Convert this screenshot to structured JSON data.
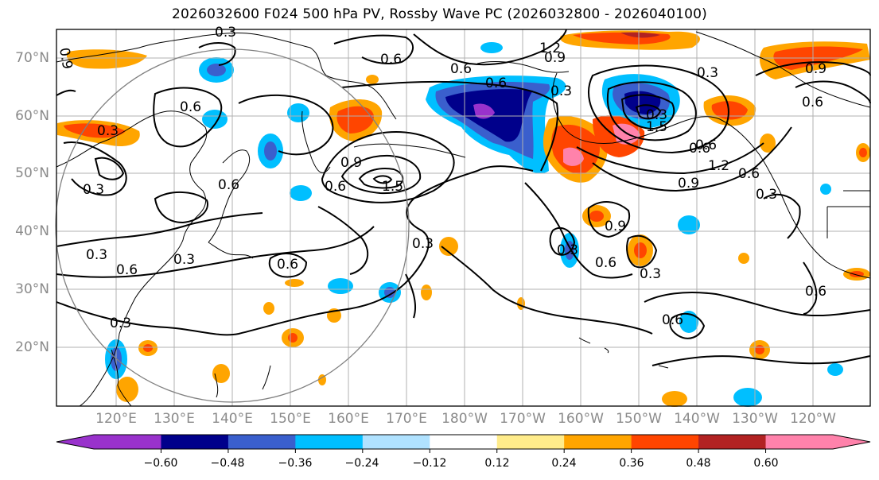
{
  "title": "2026032600 F024 500 hPa PV, Rossby Wave PC (2026032800 - 2026040100)",
  "lat_labels": [
    "70°N",
    "60°N",
    "50°N",
    "40°N",
    "30°N",
    "20°N"
  ],
  "lon_labels": [
    "120°E",
    "130°E",
    "140°E",
    "150°E",
    "160°E",
    "170°E",
    "180°W",
    "170°W",
    "160°W",
    "150°W",
    "140°W",
    "130°W",
    "120°W"
  ],
  "colorbar": {
    "ticks": [
      "−0.60",
      "−0.48",
      "−0.36",
      "−0.24",
      "−0.12",
      "0.12",
      "0.24",
      "0.36",
      "0.48",
      "0.60"
    ],
    "colors": [
      "#9932cc",
      "#00008b",
      "#3a5fcd",
      "#00bfff",
      "#b0e2ff",
      "#ffffff",
      "#ffec8b",
      "#ffa500",
      "#ff4500",
      "#b22222",
      "#ff82ab"
    ]
  },
  "contour_labels": [
    "0.9",
    "0.3",
    "0.6",
    "0.6",
    "1.2",
    "0.9",
    "0.3",
    "0.9",
    "0.6",
    "0.6",
    "0.3",
    "0.6",
    "0.3",
    "0.9",
    "1.5",
    "0.6",
    "0.3",
    "0.6",
    "0.3",
    "0.6",
    "0.9",
    "0.6",
    "1.2",
    "0.9",
    "1.5",
    "0.3",
    "0.6",
    "0.6",
    "0.3",
    "0.3",
    "0.6",
    "0.3",
    "0.6",
    "0.6",
    "0.3",
    "0.6",
    "0.3",
    "0.3"
  ]
}
